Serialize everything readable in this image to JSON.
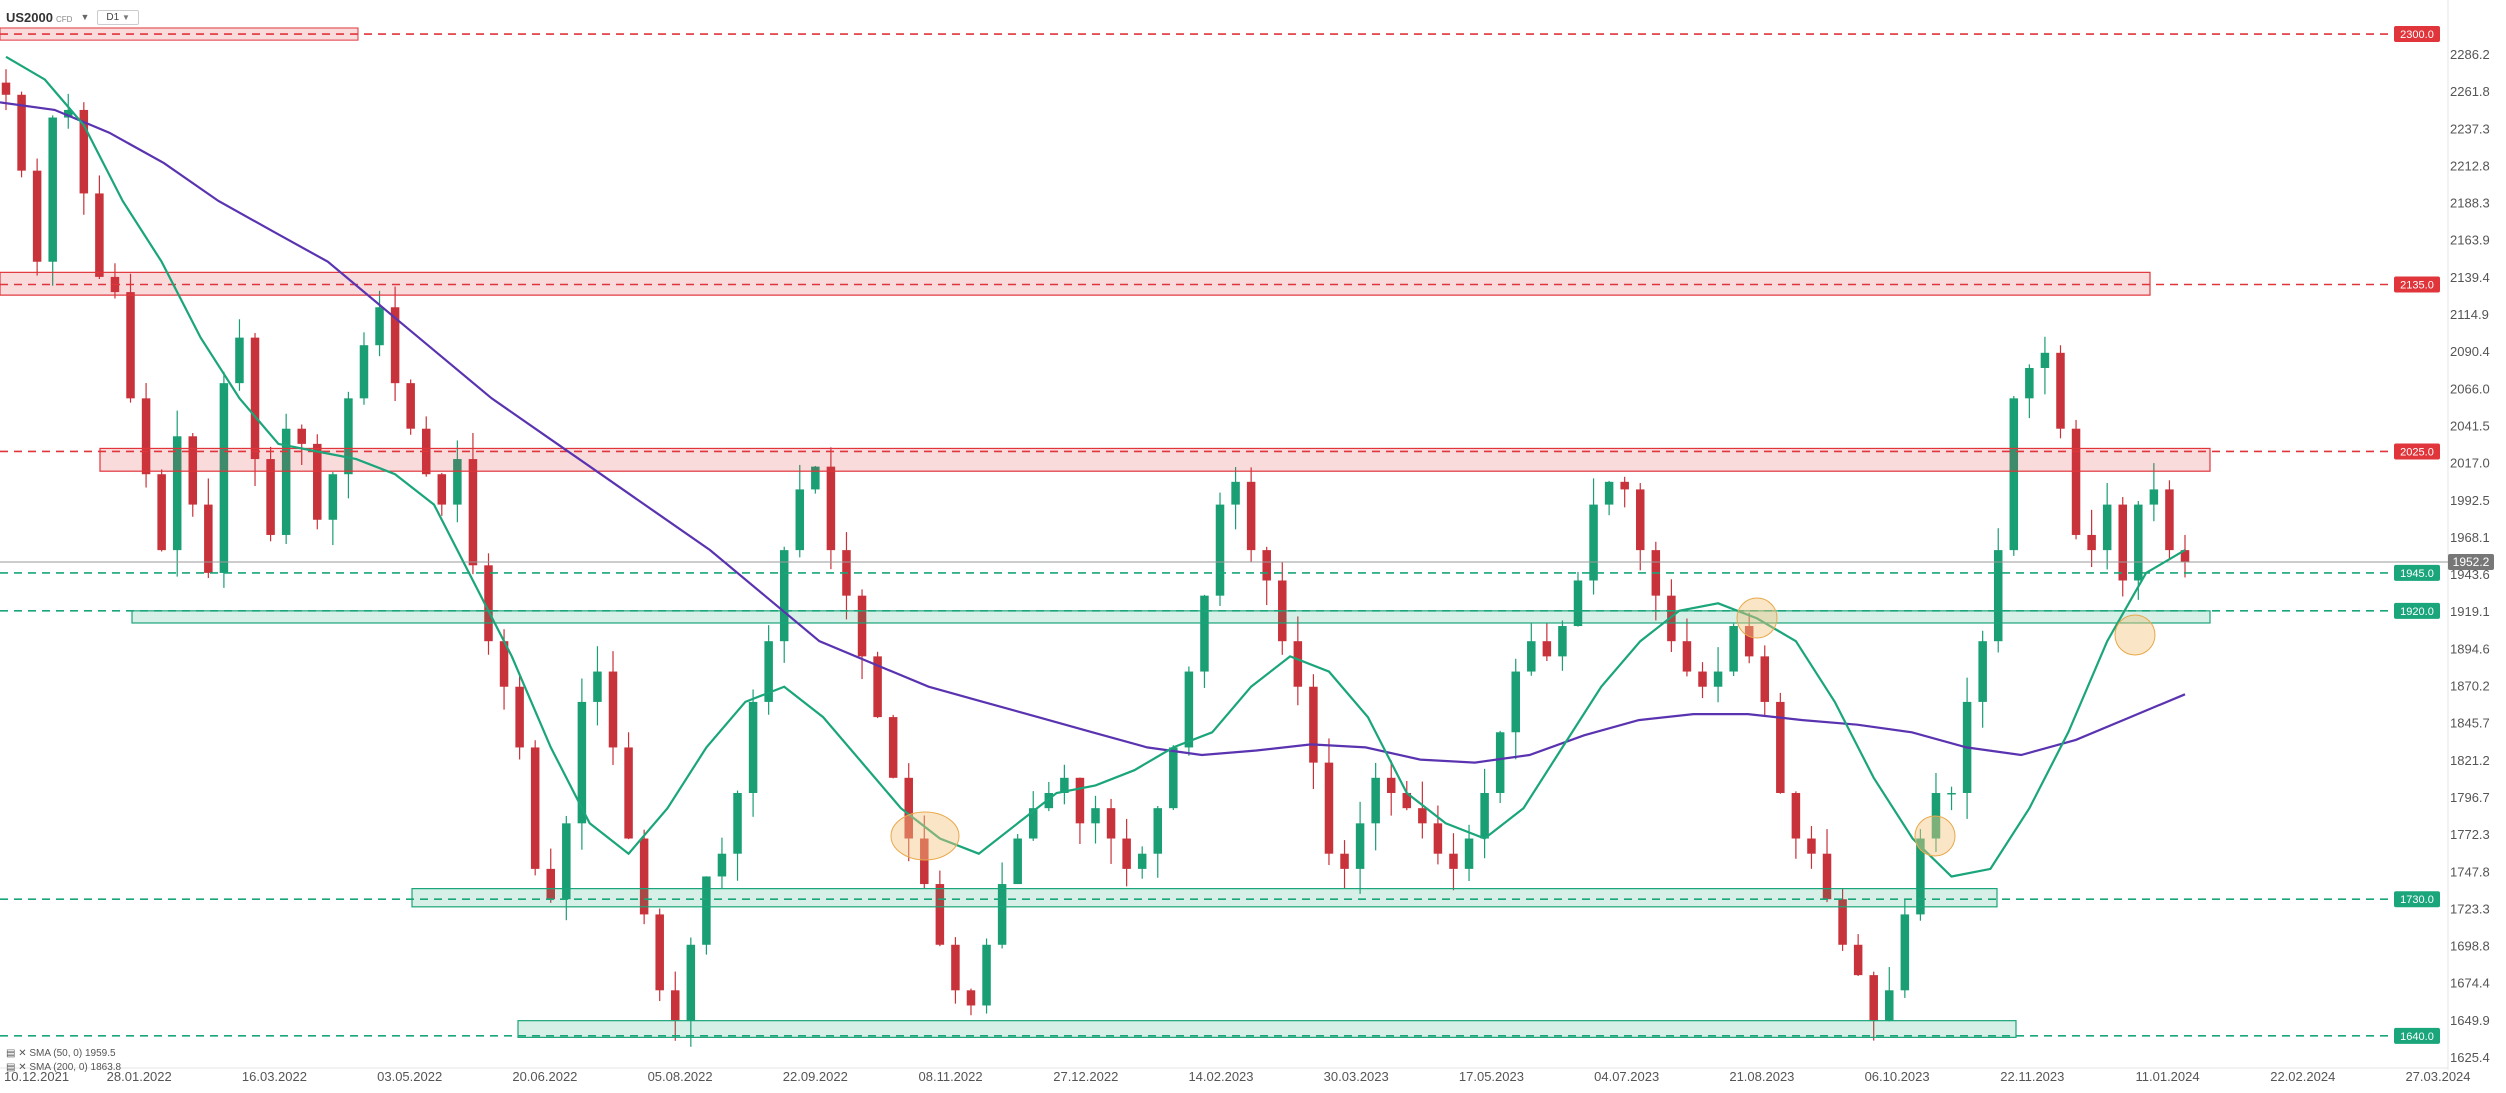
{
  "header": {
    "symbol": "US2000",
    "symbol_suffix": "CFD",
    "timeframe": "D1"
  },
  "legend": [
    {
      "label": "SMA (50, 0)",
      "value": "1959.5",
      "color": "#1aa57a"
    },
    {
      "label": "SMA (200, 0)",
      "value": "1863.8",
      "color": "#5a33b0"
    }
  ],
  "colors": {
    "up": "#1a9e74",
    "down": "#c8323a",
    "resistance": "#e0353b",
    "support": "#1aa57a",
    "sma50": "#1aa57a",
    "sma200": "#5a33b0",
    "highlight": "#f5c680"
  },
  "chart_data": {
    "type": "candlestick",
    "instrument": "US2000",
    "timeframe": "D1",
    "y_ticks": [
      "2286.2",
      "2261.8",
      "2237.3",
      "2212.8",
      "2188.3",
      "2163.9",
      "2139.4",
      "2114.9",
      "2090.4",
      "2066.0",
      "2041.5",
      "2017.0",
      "1992.5",
      "1968.1",
      "1943.6",
      "1919.1",
      "1894.6",
      "1870.2",
      "1845.7",
      "1821.2",
      "1796.7",
      "1772.3",
      "1747.8",
      "1723.3",
      "1698.8",
      "1674.4",
      "1649.9",
      "1625.4"
    ],
    "x_ticks": [
      "10.12.2021",
      "28.01.2022",
      "16.03.2022",
      "03.05.2022",
      "20.06.2022",
      "05.08.2022",
      "22.09.2022",
      "08.11.2022",
      "27.12.2022",
      "14.02.2023",
      "30.03.2023",
      "17.05.2023",
      "04.07.2023",
      "21.08.2023",
      "06.10.2023",
      "22.11.2023",
      "11.01.2024",
      "22.02.2024",
      "27.03.2024"
    ],
    "current_price": "1952.2",
    "levels": [
      {
        "value": 2300.0,
        "label": "2300.0",
        "kind": "resistance",
        "zone_from": 0.0,
        "zone_to": 0.0
      },
      {
        "value": 2135.0,
        "label": "2135.0",
        "kind": "resistance",
        "zone_from": 2128,
        "zone_to": 2143
      },
      {
        "value": 2025.0,
        "label": "2025.0",
        "kind": "resistance",
        "zone_from": 2012,
        "zone_to": 2027
      },
      {
        "value": 1945.0,
        "label": "1945.0",
        "kind": "support",
        "zone_from": 0,
        "zone_to": 0
      },
      {
        "value": 1920.0,
        "label": "1920.0",
        "kind": "support",
        "zone_from": 1912,
        "zone_to": 1920
      },
      {
        "value": 1730.0,
        "label": "1730.0",
        "kind": "support",
        "zone_from": 1725,
        "zone_to": 1737
      },
      {
        "value": 1640.0,
        "label": "1640.0",
        "kind": "support",
        "zone_from": 1639,
        "zone_to": 1650
      }
    ],
    "candles_close": [
      2260,
      2210,
      2150,
      2245,
      2250,
      2195,
      2140,
      2130,
      2060,
      2010,
      1960,
      2035,
      1990,
      1945,
      2070,
      2100,
      2020,
      1970,
      2040,
      2030,
      1980,
      2010,
      2060,
      2095,
      2120,
      2070,
      2040,
      2010,
      1990,
      2020,
      1950,
      1900,
      1870,
      1830,
      1750,
      1730,
      1780,
      1860,
      1880,
      1830,
      1770,
      1720,
      1670,
      1650,
      1700,
      1745,
      1760,
      1800,
      1860,
      1900,
      1960,
      2000,
      2015,
      1960,
      1930,
      1890,
      1850,
      1810,
      1770,
      1740,
      1700,
      1670,
      1660,
      1700,
      1740,
      1770,
      1790,
      1800,
      1810,
      1780,
      1790,
      1770,
      1750,
      1760,
      1790,
      1830,
      1880,
      1930,
      1990,
      2005,
      1960,
      1940,
      1900,
      1870,
      1820,
      1760,
      1750,
      1780,
      1810,
      1800,
      1790,
      1780,
      1760,
      1750,
      1770,
      1800,
      1840,
      1880,
      1900,
      1890,
      1910,
      1940,
      1990,
      2005,
      2000,
      1960,
      1930,
      1900,
      1880,
      1870,
      1880,
      1910,
      1890,
      1860,
      1800,
      1770,
      1760,
      1730,
      1700,
      1680,
      1650,
      1670,
      1720,
      1770,
      1800,
      1800,
      1860,
      1900,
      1960,
      2060,
      2080,
      2090,
      2040,
      1970,
      1960,
      1990,
      1940,
      1990,
      2000,
      1960,
      1952.2
    ],
    "sma50": [
      2285,
      2270,
      2240,
      2190,
      2150,
      2100,
      2060,
      2030,
      2025,
      2020,
      2010,
      1990,
      1940,
      1890,
      1830,
      1780,
      1760,
      1790,
      1830,
      1860,
      1870,
      1850,
      1820,
      1790,
      1770,
      1760,
      1780,
      1800,
      1805,
      1815,
      1830,
      1840,
      1870,
      1890,
      1880,
      1850,
      1800,
      1780,
      1770,
      1790,
      1830,
      1870,
      1900,
      1920,
      1925,
      1915,
      1900,
      1860,
      1810,
      1770,
      1745,
      1750,
      1790,
      1840,
      1900,
      1945,
      1960
    ],
    "sma200": [
      2255,
      2250,
      2235,
      2215,
      2190,
      2170,
      2150,
      2120,
      2090,
      2060,
      2035,
      2010,
      1985,
      1960,
      1930,
      1900,
      1885,
      1870,
      1860,
      1850,
      1840,
      1830,
      1825,
      1828,
      1832,
      1830,
      1822,
      1820,
      1825,
      1838,
      1848,
      1852,
      1852,
      1848,
      1845,
      1840,
      1830,
      1825,
      1835,
      1850,
      1865
    ]
  }
}
